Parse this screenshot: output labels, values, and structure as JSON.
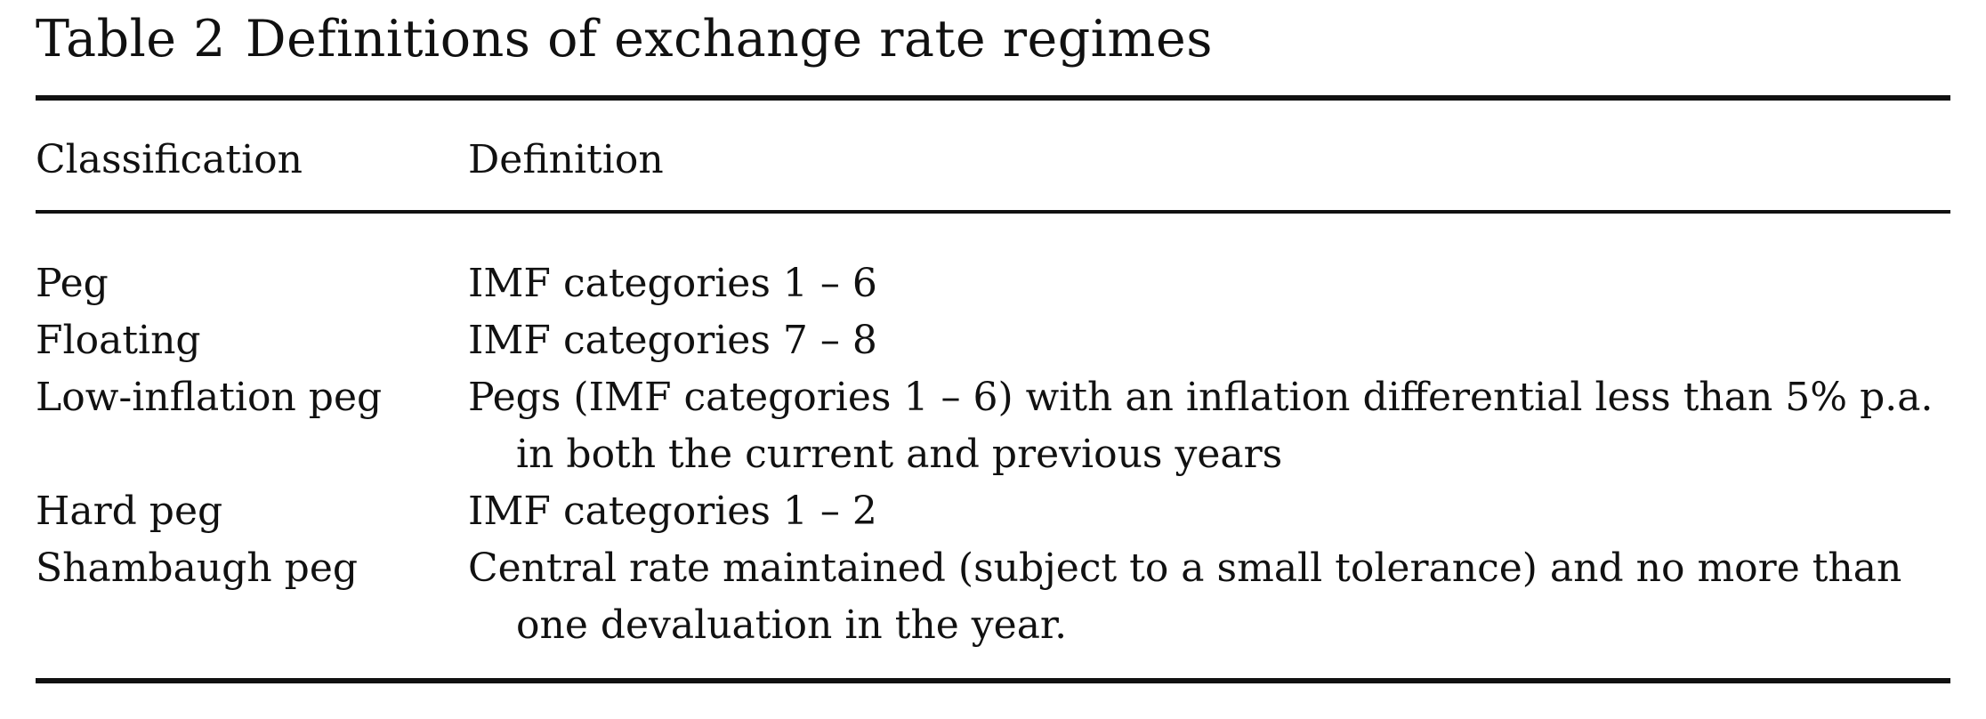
{
  "table": {
    "number": "Table 2",
    "title": "Definitions of exchange rate regimes",
    "headers": {
      "classification": "Classification",
      "definition": "Definition"
    },
    "rows": [
      {
        "classification": "Peg",
        "definition_lines": [
          "IMF categories 1 – 6"
        ]
      },
      {
        "classification": "Floating",
        "definition_lines": [
          "IMF categories 7 – 8"
        ]
      },
      {
        "classification": "Low-inflation peg",
        "definition_lines": [
          "Pegs (IMF categories 1 – 6) with an inflation differential less than 5% p.a.",
          "in both the current and previous years"
        ]
      },
      {
        "classification": "Hard peg",
        "definition_lines": [
          "IMF categories 1 – 2"
        ]
      },
      {
        "classification": "Shambaugh peg",
        "definition_lines": [
          "Central rate maintained (subject to a small tolerance) and no more than",
          "one devaluation in the year."
        ]
      }
    ]
  }
}
